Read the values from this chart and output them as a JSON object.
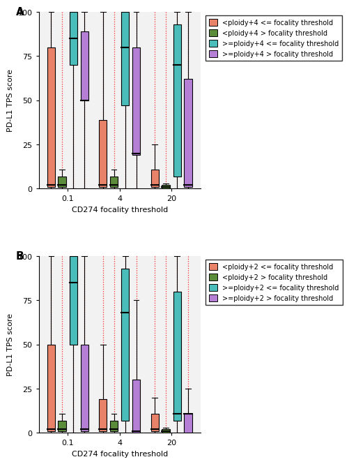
{
  "panel_A": {
    "title": "A",
    "groups": [
      "0.1",
      "4",
      "20"
    ],
    "series": [
      {
        "name": "<ploidy+4 <= focality threshold",
        "color": "#E8836A",
        "boxes": [
          {
            "q1": 1,
            "median": 2,
            "q3": 80,
            "whislo": 0,
            "whishi": 100
          },
          {
            "q1": 1,
            "median": 2,
            "q3": 39,
            "whislo": 0,
            "whishi": 100
          },
          {
            "q1": 1,
            "median": 2,
            "q3": 11,
            "whislo": 0,
            "whishi": 25
          }
        ]
      },
      {
        "name": "<ploidy+4 > focality threshold",
        "color": "#5A8C3A",
        "boxes": [
          {
            "q1": 1,
            "median": 2,
            "q3": 7,
            "whislo": 0,
            "whishi": 11
          },
          {
            "q1": 1,
            "median": 2,
            "q3": 7,
            "whislo": 0,
            "whishi": 11
          },
          {
            "q1": 0,
            "median": 1,
            "q3": 2,
            "whislo": 0,
            "whishi": 3
          }
        ]
      },
      {
        "name": ">=ploidy+4 <= focality threshold",
        "color": "#4ABCBA",
        "boxes": [
          {
            "q1": 70,
            "median": 85,
            "q3": 100,
            "whislo": 0,
            "whishi": 100
          },
          {
            "q1": 47,
            "median": 80,
            "q3": 100,
            "whislo": 0,
            "whishi": 100
          },
          {
            "q1": 7,
            "median": 70,
            "q3": 93,
            "whislo": 0,
            "whishi": 100
          }
        ]
      },
      {
        "name": ">=ploidy+4 > focality threshold",
        "color": "#B47FD4",
        "boxes": [
          {
            "q1": 50,
            "median": 50,
            "q3": 89,
            "whislo": 0,
            "whishi": 100
          },
          {
            "q1": 19,
            "median": 20,
            "q3": 80,
            "whislo": 0,
            "whishi": 100
          },
          {
            "q1": 1,
            "median": 2,
            "q3": 62,
            "whislo": 0,
            "whishi": 100
          }
        ]
      }
    ]
  },
  "panel_B": {
    "title": "B",
    "groups": [
      "0.1",
      "4",
      "20"
    ],
    "series": [
      {
        "name": "<ploidy+2 <= focality threshold",
        "color": "#E8836A",
        "boxes": [
          {
            "q1": 1,
            "median": 2,
            "q3": 50,
            "whislo": 0,
            "whishi": 100
          },
          {
            "q1": 1,
            "median": 2,
            "q3": 19,
            "whislo": 0,
            "whishi": 50
          },
          {
            "q1": 1,
            "median": 2,
            "q3": 11,
            "whislo": 0,
            "whishi": 20
          }
        ]
      },
      {
        "name": "<ploidy+2 > focality threshold",
        "color": "#5A8C3A",
        "boxes": [
          {
            "q1": 1,
            "median": 2,
            "q3": 7,
            "whislo": 0,
            "whishi": 11
          },
          {
            "q1": 1,
            "median": 2,
            "q3": 7,
            "whislo": 0,
            "whishi": 11
          },
          {
            "q1": 0,
            "median": 1,
            "q3": 2,
            "whislo": 0,
            "whishi": 3
          }
        ]
      },
      {
        "name": ">=ploidy+2 <= focality threshold",
        "color": "#4ABCBA",
        "boxes": [
          {
            "q1": 50,
            "median": 85,
            "q3": 100,
            "whislo": 0,
            "whishi": 100
          },
          {
            "q1": 7,
            "median": 68,
            "q3": 93,
            "whislo": 0,
            "whishi": 100
          },
          {
            "q1": 7,
            "median": 11,
            "q3": 80,
            "whislo": 0,
            "whishi": 100
          }
        ]
      },
      {
        "name": ">=ploidy+2 > focality threshold",
        "color": "#B47FD4",
        "boxes": [
          {
            "q1": 1,
            "median": 2,
            "q3": 50,
            "whislo": 0,
            "whishi": 100
          },
          {
            "q1": 0,
            "median": 1,
            "q3": 30,
            "whislo": 0,
            "whishi": 75
          },
          {
            "q1": 0,
            "median": 11,
            "q3": 11,
            "whislo": 0,
            "whishi": 25
          }
        ]
      }
    ]
  },
  "ylabel": "PD-L1 TPS score",
  "xlabel": "CD274 focality threshold",
  "ylim": [
    0,
    100
  ],
  "group_centers": [
    0,
    5,
    10
  ],
  "box_width": 0.75,
  "series_offsets": [
    -1.6,
    -0.55,
    0.55,
    1.6
  ],
  "background_color": "#F2F2F2",
  "dotted_line_color": "#FF0000",
  "legend_fontsize": 7.0,
  "axis_fontsize": 8,
  "title_fontsize": 11
}
